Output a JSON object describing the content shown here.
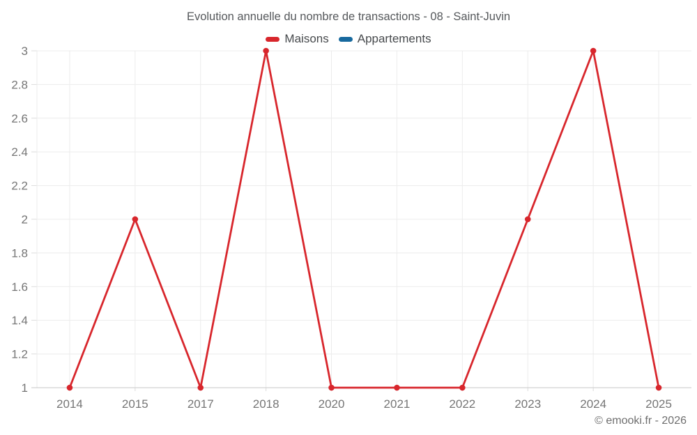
{
  "page": {
    "title": "Evolution annuelle du nombre de transactions - 08 - Saint-Juvin",
    "watermark": "© emooki.fr - 2026"
  },
  "legend": {
    "items": [
      {
        "label": "Maisons",
        "color": "#d8262c"
      },
      {
        "label": "Appartements",
        "color": "#17699e"
      }
    ]
  },
  "chart_data": {
    "type": "line",
    "title": "Evolution annuelle du nombre de transactions - 08 - Saint-Juvin",
    "categories": [
      "2014",
      "2015",
      "2017",
      "2018",
      "2020",
      "2021",
      "2022",
      "2023",
      "2024",
      "2025"
    ],
    "series": [
      {
        "name": "Maisons",
        "color": "#d8262c",
        "marker": "circle",
        "values": [
          1,
          2,
          1,
          3,
          1,
          1,
          1,
          2,
          3,
          1
        ]
      },
      {
        "name": "Appartements",
        "color": "#17699e",
        "marker": "circle",
        "values": []
      }
    ],
    "xlabel": "",
    "ylabel": "",
    "ylim": [
      1,
      3
    ],
    "ytick_step": 0.2,
    "ytick_labels": [
      "1",
      "1.2",
      "1.4",
      "1.6",
      "1.8",
      "2",
      "2.2",
      "2.4",
      "2.6",
      "2.8",
      "3"
    ],
    "grid": true,
    "legend_position": "top",
    "axis_text_color": "#757575",
    "grid_color": "#ececec",
    "tick_color": "#dcdcdc",
    "axis_line_color": "#d0d0d0"
  }
}
